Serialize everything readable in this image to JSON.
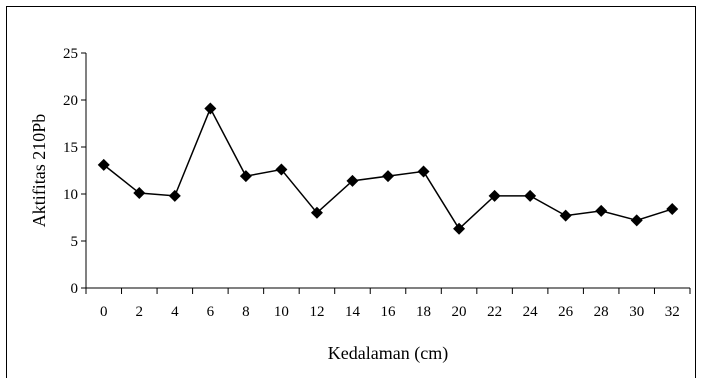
{
  "chart_data": {
    "type": "line",
    "xlabel": "Kedalaman (cm)",
    "ylabel": "Aktifitas 210Pb",
    "categories": [
      "0",
      "2",
      "4",
      "6",
      "8",
      "10",
      "12",
      "14",
      "16",
      "18",
      "20",
      "22",
      "24",
      "26",
      "28",
      "30",
      "32"
    ],
    "series": [
      {
        "values": [
          13.1,
          10.1,
          9.8,
          19.1,
          11.9,
          12.6,
          8.0,
          11.4,
          11.9,
          12.4,
          6.3,
          9.8,
          9.8,
          7.7,
          8.2,
          7.2,
          8.4
        ]
      }
    ],
    "ylim": [
      0,
      25
    ],
    "yticks": [
      "0",
      "5",
      "10",
      "15",
      "20",
      "25"
    ],
    "grid": false,
    "marker": "diamond",
    "colors": {
      "line": "#000000",
      "marker": "#000000"
    }
  }
}
